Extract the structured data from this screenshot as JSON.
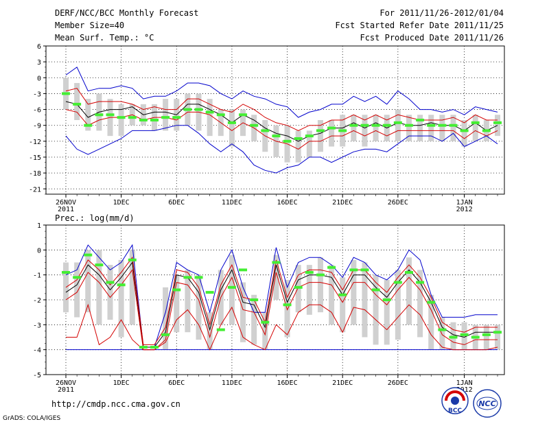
{
  "header": {
    "title": "DERF/NCC/BCC Monthly Forecast",
    "member_size": "Member Size=40",
    "variable": "Mean Surf. Temp.: °C",
    "period": "For 2011/11/26-2012/01/04",
    "started": "Fcst Started Refer Date 2011/11/25",
    "produced": "Fcst Produced Date 2011/11/26"
  },
  "footer": {
    "url": "http://cmdp.ncc.cma.gov.cn",
    "credit": "GrADS: COLA/IGES",
    "logo_bcc": "BCC",
    "logo_ncc": "NCC"
  },
  "colors": {
    "envelope": "#0000cc",
    "spread": "#d40000",
    "mean": "#000000",
    "bars": "#d0d0d0",
    "median": "#44ee33"
  },
  "chart_data": [
    {
      "type": "line",
      "title": "Mean Surf. Temp.: °C",
      "x_ticks": [
        "26NOV\n2011",
        "1DEC",
        "6DEC",
        "11DEC",
        "16DEC",
        "21DEC",
        "26DEC",
        "1JAN\n2012"
      ],
      "x_tick_days": [
        0,
        5,
        10,
        15,
        20,
        25,
        30,
        36
      ],
      "y_ticks": [
        6,
        3,
        0,
        -3,
        -6,
        -9,
        -12,
        -15,
        -18,
        -21
      ],
      "ylim": [
        -22,
        6
      ],
      "days": 40,
      "series": [
        {
          "name": "max",
          "values": [
            0.5,
            2,
            -2.5,
            -2,
            -2,
            -1.5,
            -2,
            -4,
            -3.5,
            -3.5,
            -2.5,
            -1,
            -1,
            -1.5,
            -3,
            -4,
            -2.5,
            -3.5,
            -4,
            -5,
            -5.5,
            -7.5,
            -6.5,
            -6,
            -5,
            -5,
            -3.5,
            -4.5,
            -3.5,
            -5,
            -2.5,
            -4,
            -6,
            -6,
            -6.5,
            -6,
            -7,
            -5.5,
            -6,
            -6.5
          ]
        },
        {
          "name": "upper",
          "values": [
            -2.5,
            -2,
            -5,
            -4.5,
            -4.5,
            -4.5,
            -5,
            -6,
            -5.5,
            -6,
            -6,
            -4,
            -4,
            -5,
            -6,
            -6.5,
            -5,
            -6,
            -7.5,
            -8.5,
            -9,
            -10,
            -9,
            -9,
            -8,
            -8,
            -7,
            -8,
            -7,
            -8,
            -7,
            -7.5,
            -8,
            -8,
            -8,
            -7.5,
            -8.5,
            -7,
            -8,
            -8
          ]
        },
        {
          "name": "mean",
          "values": [
            -4.5,
            -5,
            -7.5,
            -6.5,
            -6,
            -6,
            -5.5,
            -7,
            -6.5,
            -6.5,
            -7,
            -5,
            -5,
            -6,
            -7,
            -8.5,
            -7,
            -8,
            -9.5,
            -10.5,
            -11,
            -12,
            -11,
            -10.5,
            -9.5,
            -9.5,
            -8.5,
            -9.5,
            -8.5,
            -9.5,
            -8.5,
            -9,
            -9,
            -8.5,
            -9,
            -9,
            -10,
            -8.5,
            -10,
            -9
          ]
        },
        {
          "name": "lower",
          "values": [
            -6,
            -6.5,
            -9,
            -8,
            -7.5,
            -7.5,
            -7,
            -8,
            -7.5,
            -7.5,
            -8,
            -6.5,
            -6.5,
            -7,
            -8.5,
            -10,
            -8.5,
            -9.5,
            -11,
            -12,
            -12.5,
            -13.5,
            -12,
            -12,
            -11,
            -11,
            -10,
            -11,
            -10,
            -11,
            -10,
            -10,
            -10,
            -10,
            -10,
            -10,
            -11.5,
            -10,
            -11,
            -10
          ]
        },
        {
          "name": "min",
          "values": [
            -11,
            -13.5,
            -14.5,
            -13.5,
            -12.5,
            -11.5,
            -10,
            -10,
            -10,
            -9.5,
            -9,
            -9,
            -10.5,
            -12.5,
            -14,
            -12.5,
            -14,
            -16.5,
            -17.5,
            -18,
            -17,
            -16.5,
            -15,
            -15,
            -16,
            -15,
            -14,
            -13.5,
            -13.5,
            -14,
            -12.5,
            -11,
            -11,
            -11,
            -12,
            -10.5,
            -13,
            -12,
            -11,
            -12.5
          ]
        },
        {
          "name": "median",
          "values": [
            -3,
            -5,
            -9,
            -7,
            -7,
            -7.5,
            -7.5,
            -8,
            -8,
            -7.5,
            -7.5,
            -6,
            -6,
            -6.5,
            -7,
            -8.5,
            -7,
            -9,
            -10,
            -11,
            -12,
            -11.5,
            -11,
            -10,
            -9.5,
            -10,
            -9,
            -9,
            -9,
            -9,
            -8.5,
            -9,
            -8,
            -9,
            -9,
            -9,
            -10,
            -8.5,
            -10,
            -8.5
          ]
        }
      ],
      "bar_ranges": [
        [
          0,
          -6
        ],
        [
          -1,
          -8
        ],
        [
          -4,
          -10
        ],
        [
          -3,
          -10
        ],
        [
          -4,
          -11
        ],
        [
          -5,
          -11
        ],
        [
          -5,
          -9
        ],
        [
          -5,
          -9
        ],
        [
          -5,
          -10
        ],
        [
          -4,
          -10
        ],
        [
          -4,
          -10
        ],
        [
          -3,
          -9
        ],
        [
          -3,
          -10
        ],
        [
          -4,
          -11
        ],
        [
          -6,
          -11
        ],
        [
          -6,
          -13
        ],
        [
          -6,
          -11
        ],
        [
          -7,
          -12
        ],
        [
          -8,
          -14
        ],
        [
          -9,
          -15
        ],
        [
          -9,
          -16
        ],
        [
          -10,
          -16
        ],
        [
          -10,
          -15
        ],
        [
          -8,
          -14
        ],
        [
          -8,
          -13
        ],
        [
          -7,
          -13
        ],
        [
          -7,
          -12
        ],
        [
          -7,
          -13
        ],
        [
          -7,
          -12
        ],
        [
          -7,
          -12
        ],
        [
          -6,
          -12
        ],
        [
          -7,
          -12
        ],
        [
          -7,
          -12
        ],
        [
          -7,
          -12
        ],
        [
          -7,
          -12
        ],
        [
          -7,
          -12
        ],
        [
          -8,
          -13
        ],
        [
          -7,
          -12
        ],
        [
          -8,
          -12
        ],
        [
          -7,
          -11
        ]
      ]
    },
    {
      "type": "line",
      "title": "Prec.: log(mm/d)",
      "x_ticks": [
        "26NOV\n2011",
        "1DEC",
        "6DEC",
        "11DEC",
        "16DEC",
        "21DEC",
        "26DEC",
        "1JAN\n2012"
      ],
      "x_tick_days": [
        0,
        5,
        10,
        15,
        20,
        25,
        30,
        36
      ],
      "y_ticks": [
        1,
        0,
        -1,
        -2,
        -3,
        -4,
        -5
      ],
      "ylim": [
        -5,
        1
      ],
      "days": 40,
      "series": [
        {
          "name": "max",
          "values": [
            -1,
            -0.8,
            0.2,
            -0.3,
            -0.8,
            -0.5,
            0.2,
            -3.9,
            -3.9,
            -2.5,
            -0.5,
            -0.8,
            -1,
            -2.5,
            -0.8,
            0,
            -1.5,
            -2.5,
            -2.5,
            0.1,
            -1.5,
            -0.5,
            -0.3,
            -0.3,
            -0.6,
            -1.1,
            -0.3,
            -0.5,
            -1,
            -1.2,
            -0.8,
            0,
            -0.4,
            -1.8,
            -2.7,
            -2.7,
            -2.7,
            -2.6,
            -2.6,
            -2.6
          ]
        },
        {
          "name": "mean",
          "values": [
            -1.7,
            -1.4,
            -0.6,
            -1.0,
            -1.6,
            -1.1,
            -0.5,
            -3.9,
            -3.9,
            -3.3,
            -1.0,
            -1.1,
            -1.7,
            -3.2,
            -1.6,
            -0.8,
            -2.1,
            -2.2,
            -3.1,
            -0.6,
            -2.1,
            -1.2,
            -1.0,
            -1.0,
            -1.1,
            -1.8,
            -1.0,
            -1.0,
            -1.5,
            -1.9,
            -1.3,
            -0.8,
            -1.3,
            -2.1,
            -3.1,
            -3.4,
            -3.5,
            -3.3,
            -3.3,
            -3.3
          ]
        },
        {
          "name": "upper",
          "values": [
            -1.5,
            -1.2,
            -0.4,
            -0.8,
            -1.4,
            -0.9,
            -0.3,
            -3.8,
            -3.8,
            -3.1,
            -0.8,
            -0.9,
            -1.5,
            -3.0,
            -1.4,
            -0.6,
            -1.9,
            -2.0,
            -2.9,
            -0.4,
            -1.9,
            -1.0,
            -0.8,
            -0.8,
            -0.9,
            -1.6,
            -0.8,
            -0.8,
            -1.3,
            -1.7,
            -1.1,
            -0.6,
            -1.1,
            -1.9,
            -2.9,
            -3.2,
            -3.3,
            -3.1,
            -3.1,
            -3.1
          ]
        },
        {
          "name": "lower",
          "values": [
            -2.0,
            -1.7,
            -0.9,
            -1.3,
            -1.9,
            -1.4,
            -0.8,
            -4.0,
            -4.0,
            -3.6,
            -1.3,
            -1.4,
            -2.0,
            -3.5,
            -1.9,
            -1.1,
            -2.4,
            -2.5,
            -3.4,
            -0.9,
            -2.4,
            -1.5,
            -1.3,
            -1.3,
            -1.4,
            -2.1,
            -1.3,
            -1.3,
            -1.8,
            -2.2,
            -1.6,
            -1.1,
            -1.6,
            -2.4,
            -3.4,
            -3.7,
            -3.8,
            -3.6,
            -3.6,
            -3.6
          ]
        },
        {
          "name": "low",
          "values": [
            -3.5,
            -3.5,
            -2.2,
            -3.8,
            -3.5,
            -2.8,
            -3.6,
            -4,
            -4,
            -3.7,
            -2.8,
            -2.4,
            -3.0,
            -4.0,
            -3.0,
            -2.3,
            -3.5,
            -3.8,
            -4.0,
            -3.0,
            -3.4,
            -2.5,
            -2.2,
            -2.2,
            -2.5,
            -3.3,
            -2.3,
            -2.4,
            -2.8,
            -3.2,
            -2.7,
            -2.2,
            -2.6,
            -3.4,
            -3.9,
            -4.0,
            -4.0,
            -4.0,
            -4.0,
            -3.9
          ]
        },
        {
          "name": "median",
          "values": [
            -0.9,
            -1.1,
            -0.2,
            -0.6,
            -1.3,
            -1.4,
            -0.4,
            -3.9,
            -3.9,
            -3.4,
            -1.6,
            -1.1,
            -1.1,
            -1.7,
            -3.2,
            -1.5,
            -0.8,
            -2.0,
            -2.9,
            -0.5,
            -2.2,
            -1.5,
            -0.9,
            -1.0,
            -0.7,
            -1.8,
            -0.8,
            -0.8,
            -1.6,
            -2.0,
            -1.3,
            -0.9,
            -1.3,
            -2.1,
            -3.2,
            -3.5,
            -3.4,
            -3.5,
            -3.4,
            -3.3
          ]
        }
      ],
      "bar_ranges": [
        [
          -0.5,
          -2.5
        ],
        [
          -0.5,
          -2.7
        ],
        [
          0,
          -2.5
        ],
        [
          0,
          -3
        ],
        [
          -0.6,
          -2.8
        ],
        [
          -0.4,
          -3.5
        ],
        [
          0,
          -3
        ],
        [
          -3.9,
          -3.9
        ],
        [
          -3.9,
          -3.9
        ],
        [
          -1.5,
          -4
        ],
        [
          -1,
          -3.3
        ],
        [
          -0.8,
          -3.3
        ],
        [
          -1.0,
          -3.6
        ],
        [
          -2.5,
          -4
        ],
        [
          -0.8,
          -3
        ],
        [
          -0.2,
          -3
        ],
        [
          -1.3,
          -3.7
        ],
        [
          -1.8,
          -3.8
        ],
        [
          -2.5,
          -4
        ],
        [
          -0.2,
          -2
        ],
        [
          -1.2,
          -3.5
        ],
        [
          -0.6,
          -2.5
        ],
        [
          -0.6,
          -2.6
        ],
        [
          -0.3,
          -2.5
        ],
        [
          -0.6,
          -3
        ],
        [
          -1.1,
          -3.3
        ],
        [
          -0.4,
          -3
        ],
        [
          -0.5,
          -3.5
        ],
        [
          -1,
          -3.8
        ],
        [
          -1.2,
          -3.8
        ],
        [
          -0.8,
          -3.6
        ],
        [
          -0.3,
          -3
        ],
        [
          -0.8,
          -3.5
        ],
        [
          -1.8,
          -4
        ],
        [
          -2.7,
          -4
        ],
        [
          -2.9,
          -4
        ],
        [
          -2.9,
          -4
        ],
        [
          -3,
          -4
        ],
        [
          -3,
          -4
        ],
        [
          -3,
          -4
        ]
      ]
    }
  ],
  "panel2_label": "Prec.: log(mm/d)"
}
